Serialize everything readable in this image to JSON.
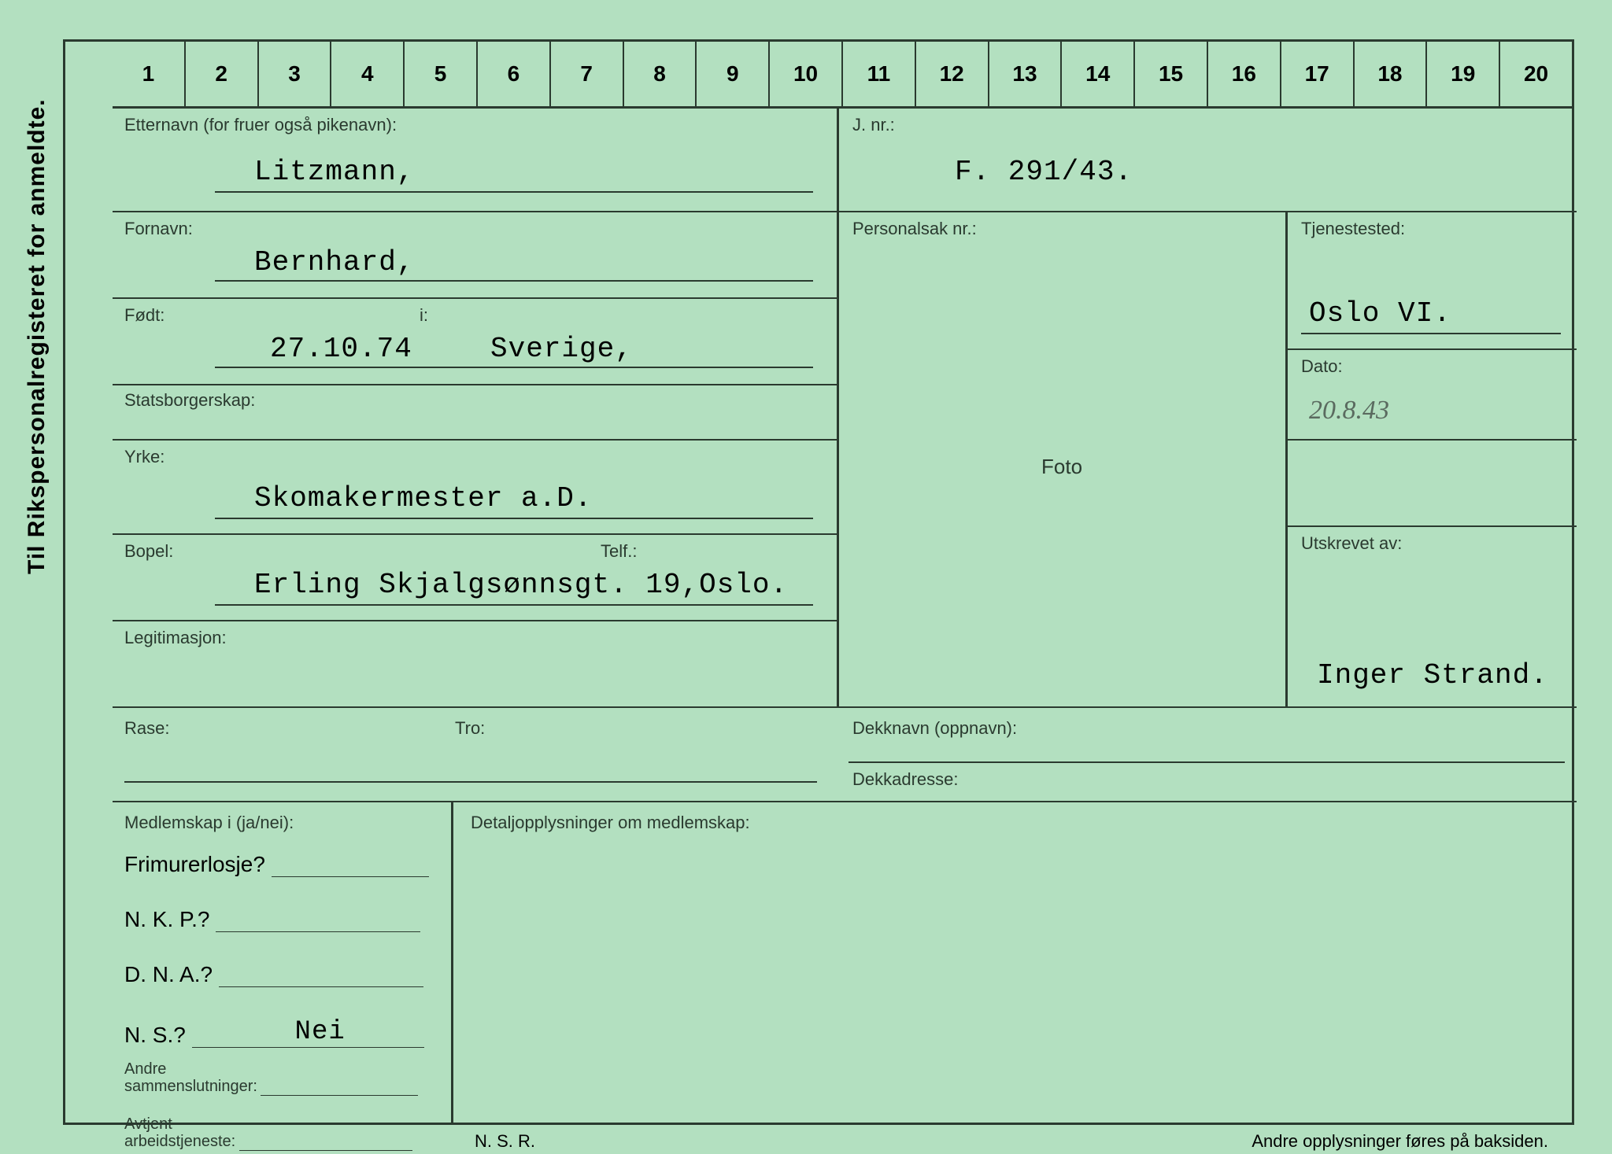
{
  "side_text": "Til Rikspersonalregisteret for anmeldte.",
  "ruler": [
    "1",
    "2",
    "3",
    "4",
    "5",
    "6",
    "7",
    "8",
    "9",
    "10",
    "11",
    "12",
    "13",
    "14",
    "15",
    "16",
    "17",
    "18",
    "19",
    "20"
  ],
  "labels": {
    "etternavn": "Etternavn (for fruer også pikenavn):",
    "jnr": "J. nr.:",
    "fornavn": "Fornavn:",
    "personalsak": "Personalsak nr.:",
    "fodt": "Født:",
    "i": "i:",
    "tjenestested": "Tjenestested:",
    "statsborgerskap": "Statsborgerskap:",
    "dato": "Dato:",
    "yrke": "Yrke:",
    "foto": "Foto",
    "utskrevet": "Utskrevet av:",
    "bopel": "Bopel:",
    "telf": "Telf.:",
    "legitimasjon": "Legitimasjon:",
    "rase": "Rase:",
    "tro": "Tro:",
    "dekknavn": "Dekknavn (oppnavn):",
    "dekkadresse": "Dekkadresse:",
    "medlemskap": "Medlemskap i (ja/nei):",
    "detalj": "Detaljopplysninger om medlemskap:",
    "frimurer": "Frimurerlosje?",
    "nkp": "N. K. P.?",
    "dna": "D. N. A.?",
    "ns": "N. S.?",
    "andre_sammen": "Andre\nsammenslutninger:",
    "andre_sammen1": "Andre",
    "andre_sammen2": "sammenslutninger:",
    "avtjent1": "Avtjent",
    "avtjent2": "arbeidstjeneste:",
    "nsr": "N. S. R.",
    "footer": "Andre opplysninger føres på baksiden."
  },
  "values": {
    "etternavn": "Litzmann,",
    "jnr": "F. 291/43.",
    "fornavn": "Bernhard,",
    "fodt": "27.10.74",
    "i": "Sverige,",
    "tjenestested": "Oslo VI.",
    "dato": "20.8.43",
    "yrke": "Skomakermester a.D.",
    "bopel": "Erling Skjalgsønnsgt. 19,Oslo.",
    "utskrevet": "Inger Strand.",
    "ns": "Nei"
  }
}
